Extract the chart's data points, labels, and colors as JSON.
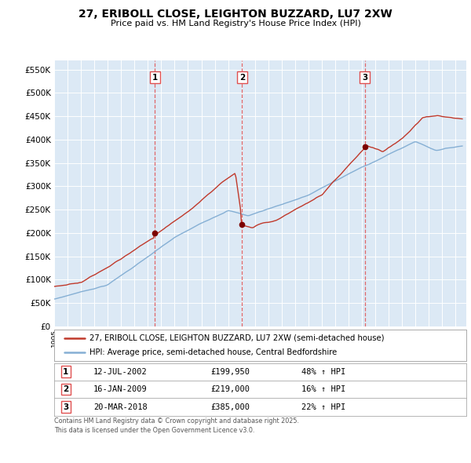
{
  "title": "27, ERIBOLL CLOSE, LEIGHTON BUZZARD, LU7 2XW",
  "subtitle": "Price paid vs. HM Land Registry's House Price Index (HPI)",
  "bg_color": "#dce9f5",
  "fig_bg_color": "#ffffff",
  "red_line_label": "27, ERIBOLL CLOSE, LEIGHTON BUZZARD, LU7 2XW (semi-detached house)",
  "blue_line_label": "HPI: Average price, semi-detached house, Central Bedfordshire",
  "sale_prices": [
    199950,
    219000,
    385000
  ],
  "sale_annotations_date": [
    "12-JUL-2002",
    "16-JAN-2009",
    "20-MAR-2018"
  ],
  "sale_annotations_price": [
    "£199,950",
    "£219,000",
    "£385,000"
  ],
  "sale_annotations_hpi": [
    "48% ↑ HPI",
    "16% ↑ HPI",
    "22% ↑ HPI"
  ],
  "footer": "Contains HM Land Registry data © Crown copyright and database right 2025.\nThis data is licensed under the Open Government Licence v3.0.",
  "ylim": [
    0,
    570000
  ],
  "yticks": [
    0,
    50000,
    100000,
    150000,
    200000,
    250000,
    300000,
    350000,
    400000,
    450000,
    500000,
    550000
  ],
  "ytick_labels": [
    "£0",
    "£50K",
    "£100K",
    "£150K",
    "£200K",
    "£250K",
    "£300K",
    "£350K",
    "£400K",
    "£450K",
    "£500K",
    "£550K"
  ],
  "red_color": "#c0392b",
  "blue_color": "#85afd4",
  "dot_color": "#7b0000",
  "vline_color": "#e05050",
  "grid_color": "#ffffff",
  "sale1_x": 2002.53,
  "sale2_x": 2009.04,
  "sale3_x": 2018.21,
  "xmin": 1995.0,
  "xmax": 2025.8
}
